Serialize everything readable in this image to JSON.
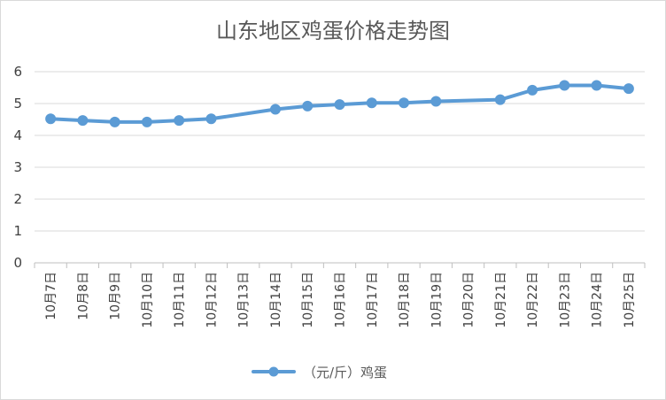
{
  "chart_data": {
    "type": "line",
    "title": "山东地区鸡蛋价格走势图",
    "xlabel": "",
    "ylabel": "",
    "categories": [
      "10月7日",
      "10月8日",
      "10月9日",
      "10月10日",
      "10月11日",
      "10月12日",
      "10月13日",
      "10月14日",
      "10月15日",
      "10月16日",
      "10月17日",
      "10月18日",
      "10月19日",
      "10月20日",
      "10月21日",
      "10月22日",
      "10月23日",
      "10月24日",
      "10月25日"
    ],
    "series": [
      {
        "name": "（元/斤）鸡蛋",
        "color": "#5b9bd5",
        "values": [
          4.52,
          4.47,
          4.42,
          4.42,
          4.47,
          4.52,
          null,
          4.82,
          4.92,
          4.97,
          5.02,
          5.02,
          5.07,
          null,
          5.12,
          5.42,
          5.57,
          5.57,
          5.47
        ]
      }
    ],
    "ylim": [
      0,
      6
    ],
    "yticks": [
      0,
      1,
      2,
      3,
      4,
      5,
      6
    ],
    "grid": true,
    "legend_position": "bottom"
  }
}
